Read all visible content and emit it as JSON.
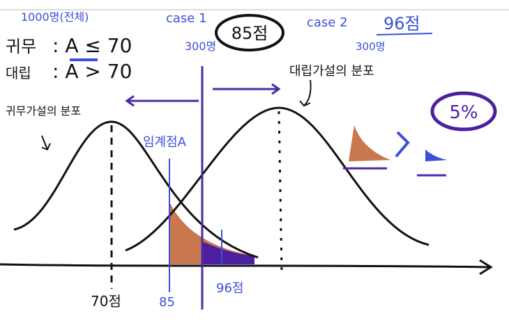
{
  "total": "1000명(전체)",
  "hypotheses": [
    {
      "label": "귀무",
      "relation": ": A ≤ 70"
    },
    {
      "label": "대립",
      "relation": ": A > 70"
    }
  ],
  "cases": [
    {
      "name": "case 1",
      "count": "300명",
      "score": "85점"
    },
    {
      "name": "case 2",
      "count": "300명",
      "score": "96점"
    }
  ],
  "distributions": {
    "null": "귀무가설의 분포",
    "alternative": "대립가설의 분포"
  },
  "critical_label": "임계점A",
  "significance": "5%",
  "axis_labels": [
    "70점",
    "85",
    "96점"
  ]
}
